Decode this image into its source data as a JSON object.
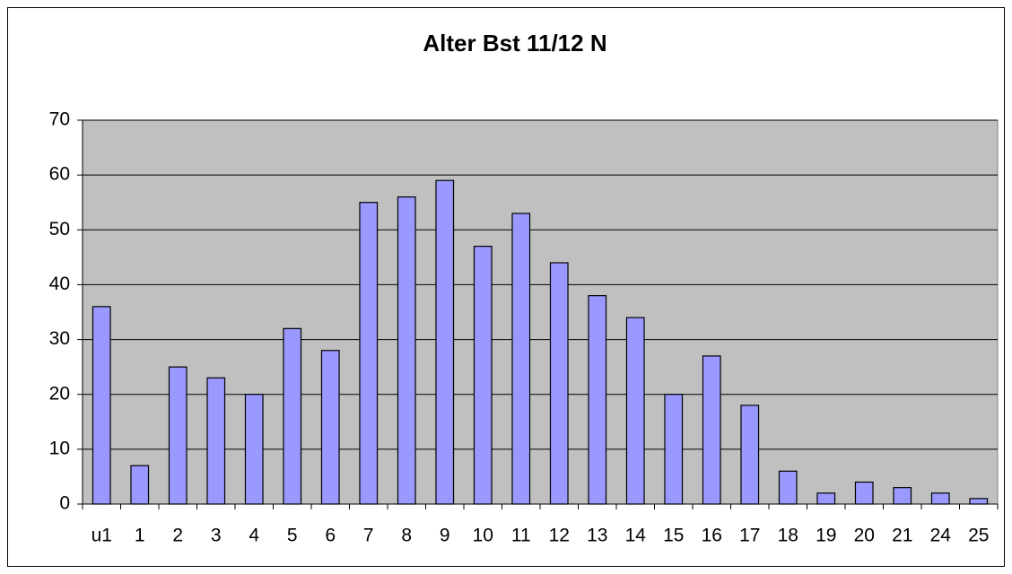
{
  "chart_data": {
    "type": "bar",
    "title": "Alter Bst 11/12 N",
    "categories": [
      "u1",
      "1",
      "2",
      "3",
      "4",
      "5",
      "6",
      "7",
      "8",
      "9",
      "10",
      "11",
      "12",
      "13",
      "14",
      "15",
      "16",
      "17",
      "18",
      "19",
      "20",
      "21",
      "24",
      "25"
    ],
    "values": [
      36,
      7,
      25,
      23,
      20,
      32,
      28,
      55,
      56,
      59,
      47,
      53,
      44,
      38,
      34,
      20,
      27,
      18,
      6,
      2,
      4,
      3,
      2,
      1
    ],
    "color": "#9999ff",
    "plot_background": "#c0c0c0",
    "ylim": [
      0,
      70
    ],
    "yticks": [
      0,
      10,
      20,
      30,
      40,
      50,
      60,
      70
    ],
    "grid": true
  }
}
